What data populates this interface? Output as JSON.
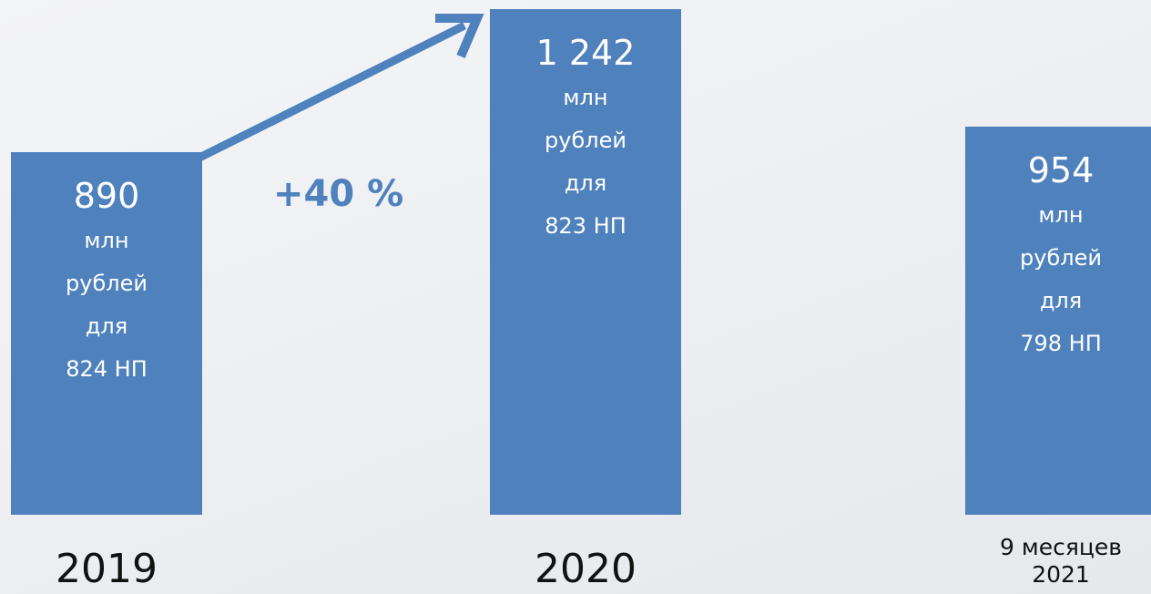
{
  "chart_data": {
    "type": "bar",
    "categories": [
      "2019",
      "2020",
      "9 месяцев 2021"
    ],
    "values": [
      890,
      1242,
      954
    ],
    "value_labels": [
      "890",
      "1 242",
      "954"
    ],
    "details": [
      [
        "млн",
        "рублей",
        "для",
        "824 НП"
      ],
      [
        "млн",
        "рублей",
        "для",
        "823 НП"
      ],
      [
        "млн",
        "рублей",
        "для",
        "798 НП"
      ]
    ],
    "annotation": "+40 %",
    "color": "#4f81bd"
  }
}
